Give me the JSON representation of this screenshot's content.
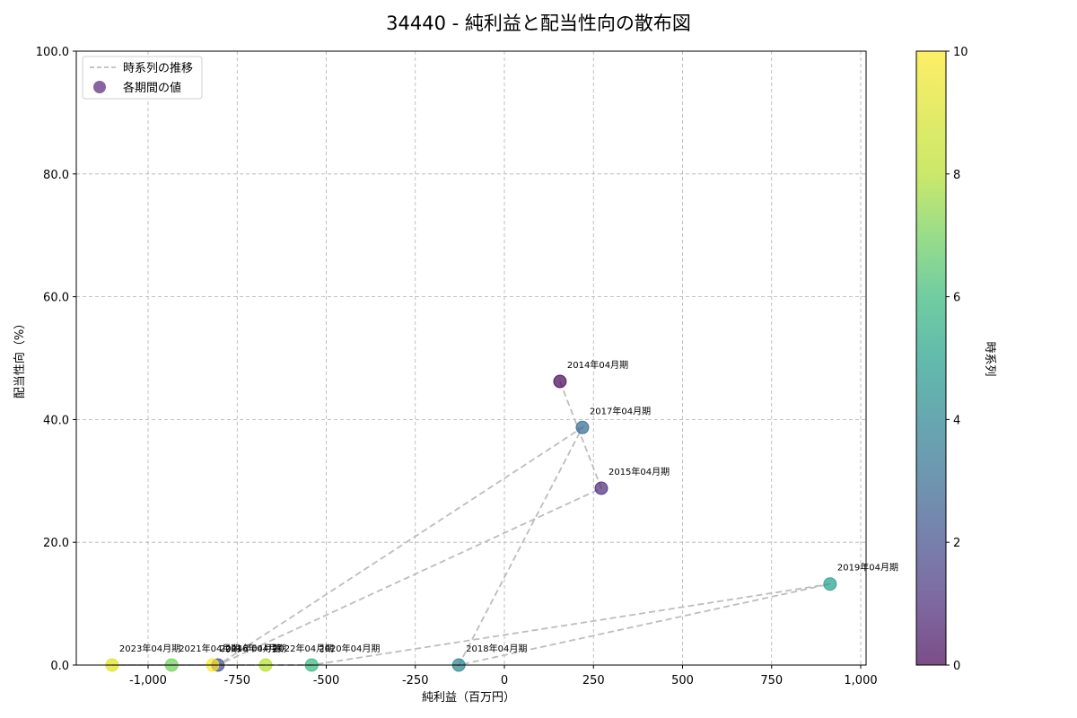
{
  "chart_data": {
    "type": "scatter",
    "title": "34440 - 純利益と配当性向の散布図",
    "xlabel": "純利益（百万円）",
    "ylabel": "配当性向（%）",
    "xlim": [
      -1210,
      1010
    ],
    "ylim": [
      0,
      100
    ],
    "xticks": [
      -1000,
      -750,
      -500,
      -250,
      0,
      250,
      500,
      750,
      1000
    ],
    "xtick_labels": [
      "-1,000",
      "-750",
      "-500",
      "-250",
      "0",
      "250",
      "500",
      "750",
      "1,000"
    ],
    "yticks": [
      0,
      20,
      40,
      60,
      80,
      100
    ],
    "ytick_labels": [
      "0.0",
      "20.0",
      "40.0",
      "60.0",
      "80.0",
      "100.0"
    ],
    "grid": true,
    "legend": {
      "position": "upper left",
      "entries": [
        {
          "label": "時系列の推移",
          "kind": "dashed-line",
          "color": "#bdbdbd"
        },
        {
          "label": "各期間の値",
          "kind": "marker",
          "color": "#6a3d8a"
        }
      ]
    },
    "colorbar": {
      "label": "時系列",
      "min": 0,
      "max": 10,
      "ticks": [
        0,
        2,
        4,
        6,
        8,
        10
      ],
      "colormap": "viridis"
    },
    "points": [
      {
        "label": "2014年04月期",
        "x": 156,
        "y": 46.2,
        "t": 0
      },
      {
        "label": "2015年04月期",
        "x": 272,
        "y": 28.8,
        "t": 1
      },
      {
        "label": "2016年04月期",
        "x": -804,
        "y": 0.0,
        "t": 2
      },
      {
        "label": "2017年04月期",
        "x": 219,
        "y": 38.7,
        "t": 3
      },
      {
        "label": "2018年04月期",
        "x": -128,
        "y": 0.0,
        "t": 4
      },
      {
        "label": "2019年04月期",
        "x": 914,
        "y": 13.2,
        "t": 5
      },
      {
        "label": "2020年04月期",
        "x": -541,
        "y": 0.0,
        "t": 6
      },
      {
        "label": "2021年04月期",
        "x": -934,
        "y": 0.0,
        "t": 7
      },
      {
        "label": "2022年04月期",
        "x": -670,
        "y": 0.0,
        "t": 8
      },
      {
        "label": "2023年04月期",
        "x": -1101,
        "y": 0.0,
        "t": 9
      },
      {
        "label": "2024年04月期",
        "x": -819,
        "y": 0.0,
        "t": 10
      }
    ]
  }
}
